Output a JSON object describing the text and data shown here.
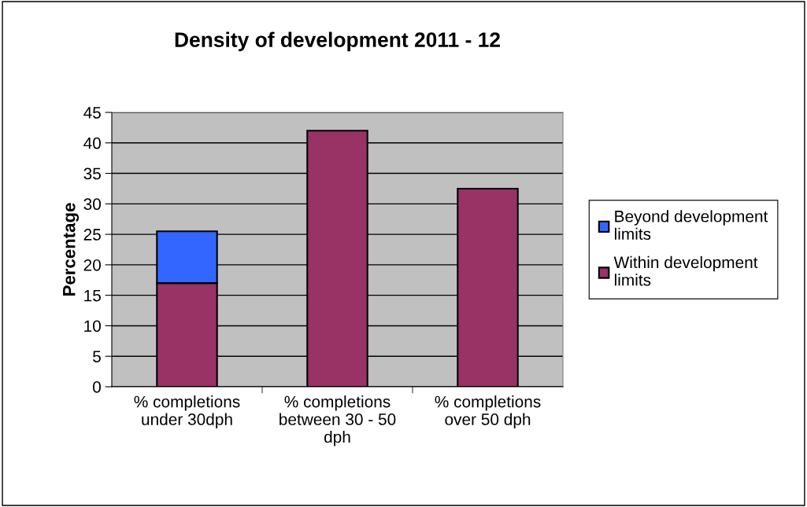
{
  "chart_data": {
    "type": "bar",
    "title": "Density of development 2011 - 12",
    "ylabel": "Percentage",
    "categories": [
      "% completions\nunder 30dph",
      "% completions\nbetween 30 - 50\ndph",
      "% completions\nover 50 dph"
    ],
    "series": [
      {
        "name": "Within development\nlimits",
        "color": "#993366",
        "values": [
          17,
          42,
          32.5
        ]
      },
      {
        "name": "Beyond development\nlimits",
        "color": "#3366ff",
        "values": [
          8.5,
          null,
          null
        ]
      }
    ],
    "stacked": true,
    "ylim": [
      0,
      45
    ],
    "yticks": [
      0,
      5,
      10,
      15,
      20,
      25,
      30,
      35,
      40,
      45
    ],
    "grid": "y",
    "legend": "right"
  }
}
